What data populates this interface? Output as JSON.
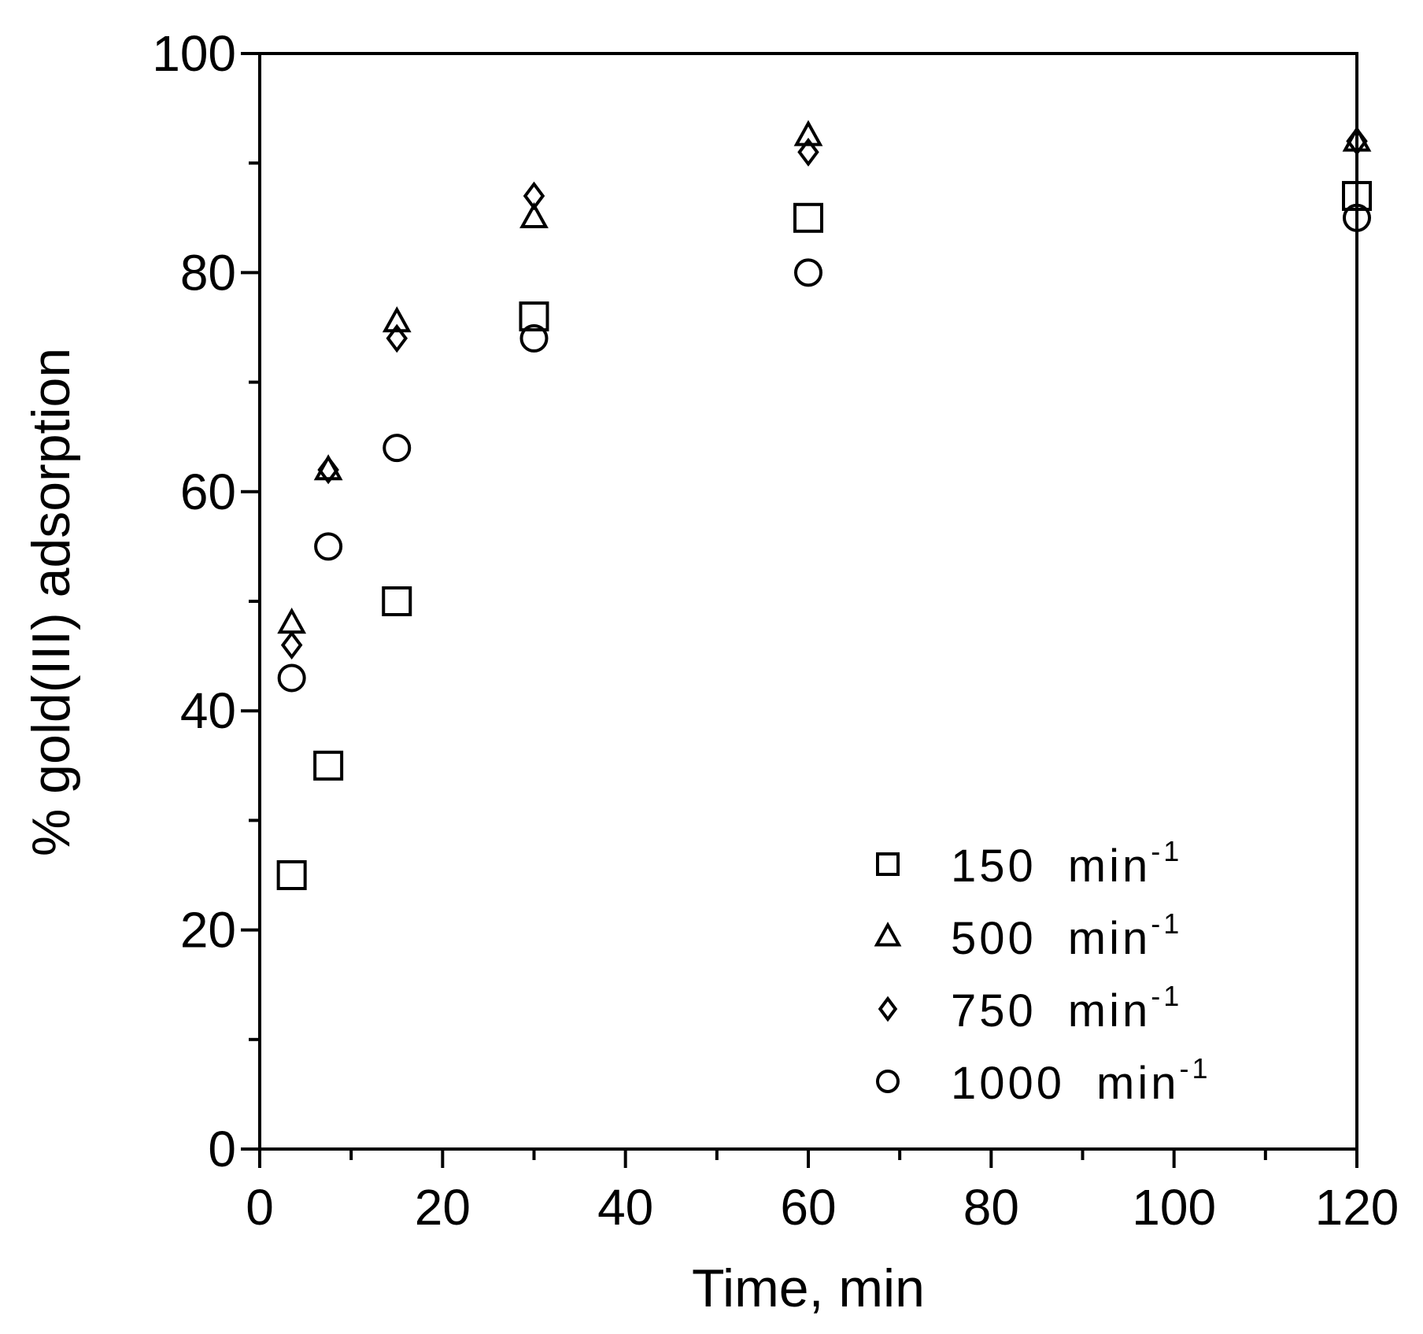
{
  "chart_data": {
    "type": "scatter",
    "title": "",
    "xlabel": "Time, min",
    "ylabel": "% gold(III) adsorption",
    "xlim": [
      0,
      120
    ],
    "ylim": [
      0,
      100
    ],
    "x_ticks": [
      "0",
      "20",
      "40",
      "60",
      "80",
      "100",
      "120"
    ],
    "y_ticks": [
      "0",
      "20",
      "40",
      "60",
      "80",
      "100"
    ],
    "grid": false,
    "legend_position": "bottom-right",
    "series": [
      {
        "name": "150",
        "unit": "min",
        "exponent": "-1",
        "marker": "square",
        "points": [
          [
            3.5,
            25
          ],
          [
            7.5,
            35
          ],
          [
            15,
            50
          ],
          [
            30,
            76
          ],
          [
            60,
            85
          ],
          [
            120,
            87
          ]
        ]
      },
      {
        "name": "500",
        "unit": "min",
        "exponent": "-1",
        "marker": "triangle",
        "points": [
          [
            3.5,
            48
          ],
          [
            7.5,
            62
          ],
          [
            15,
            75.5
          ],
          [
            30,
            85
          ],
          [
            60,
            92.5
          ],
          [
            120,
            92
          ]
        ]
      },
      {
        "name": "750",
        "unit": "min",
        "exponent": "-1",
        "marker": "diamond",
        "points": [
          [
            3.5,
            46
          ],
          [
            7.5,
            62
          ],
          [
            15,
            74
          ],
          [
            30,
            87
          ],
          [
            60,
            91
          ],
          [
            120,
            92
          ]
        ]
      },
      {
        "name": "1000",
        "unit": "min",
        "exponent": "-1",
        "marker": "circle",
        "points": [
          [
            3.5,
            43
          ],
          [
            7.5,
            55
          ],
          [
            15,
            64
          ],
          [
            30,
            74
          ],
          [
            60,
            80
          ],
          [
            120,
            85
          ]
        ]
      }
    ]
  }
}
